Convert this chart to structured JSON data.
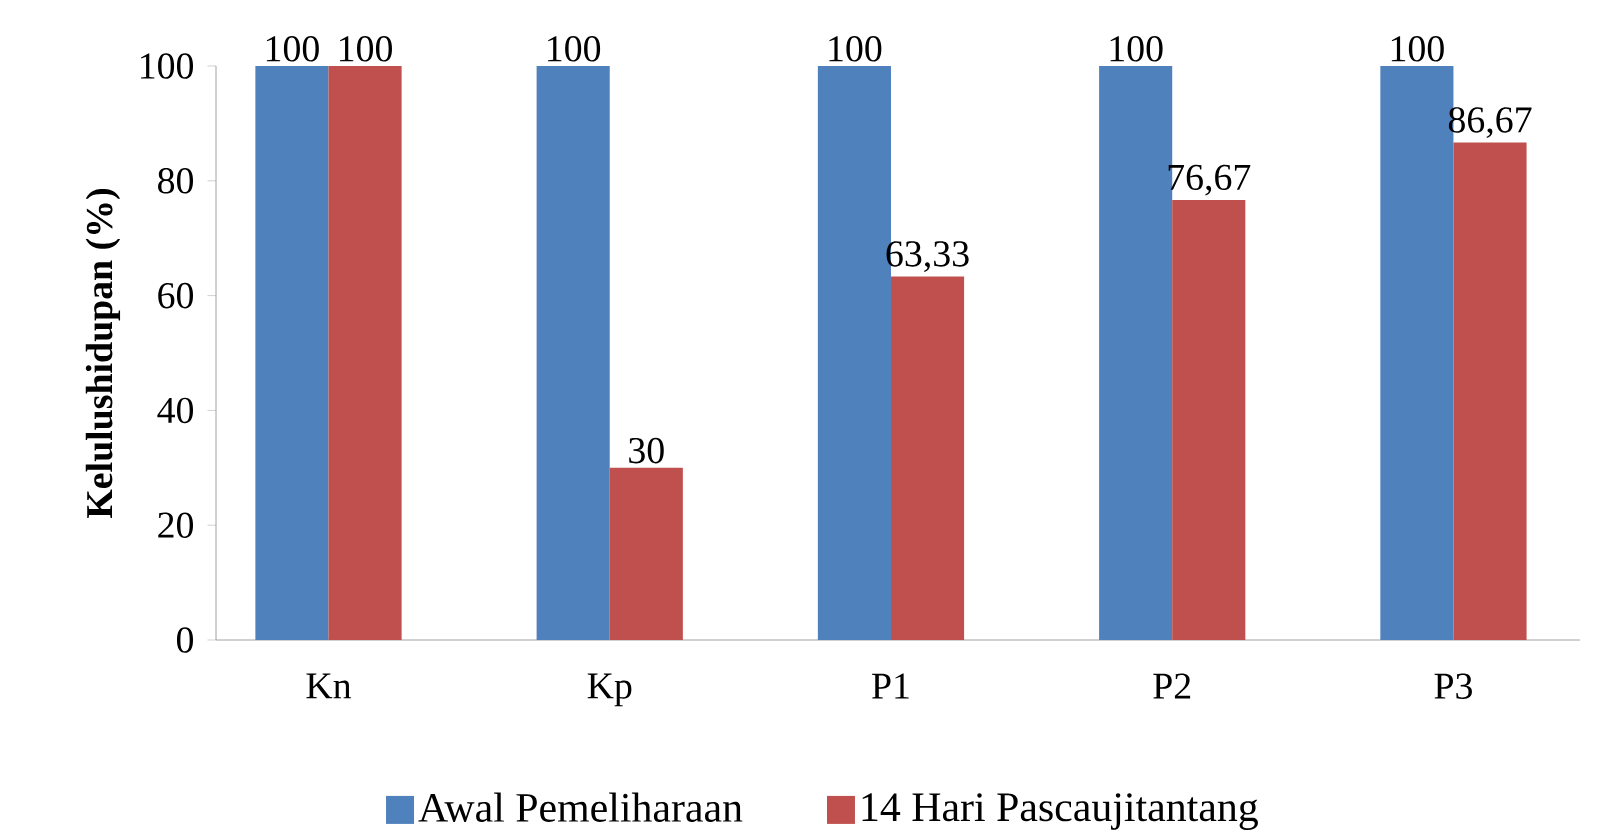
{
  "chart_data": {
    "type": "bar",
    "ylabel": "Kelulushidupan (%)",
    "categories": [
      "Kn",
      "Kp",
      "P1",
      "P2",
      "P3"
    ],
    "series": [
      {
        "name": "Awal Pemeliharaan",
        "color": "#4f81bd",
        "values": [
          100,
          100,
          100,
          100,
          100
        ],
        "value_labels": [
          "100",
          "100",
          "100",
          "100",
          "100"
        ]
      },
      {
        "name": "14 Hari Pascaujitantang",
        "color": "#c0504d",
        "values": [
          100,
          30,
          63.33,
          76.67,
          86.67
        ],
        "value_labels": [
          "100",
          "30",
          "63,33",
          "76,67",
          "86,67"
        ]
      }
    ],
    "ylim": [
      0,
      100
    ],
    "yticks": [
      0,
      20,
      40,
      60,
      80,
      100
    ],
    "legend": "bottom"
  }
}
